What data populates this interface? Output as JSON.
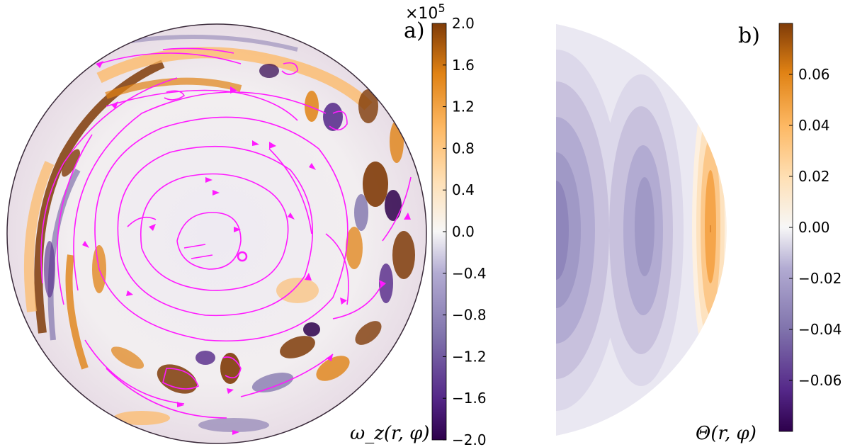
{
  "chart_data": [
    {
      "panel": "a)",
      "type": "heatmap",
      "title": "",
      "colorbar": {
        "quantity_label": "ω_z(r, φ)",
        "exponent_label": "×10",
        "exponent_power": "5",
        "ticks": [
          2.0,
          1.6,
          1.2,
          0.8,
          0.4,
          0.0,
          -0.4,
          -0.8,
          -1.2,
          -1.6,
          -2.0
        ],
        "tick_labels": [
          "2.0",
          "1.6",
          "1.2",
          "0.8",
          "0.4",
          "0.0",
          "−0.4",
          "−0.8",
          "−1.2",
          "−1.6",
          "−2.0"
        ],
        "range": [
          -2.0,
          2.0
        ],
        "colormap": "PuOr_r"
      },
      "domain": "full disk (equatorial plane), streamlines overlaid"
    },
    {
      "panel": "b)",
      "type": "heatmap",
      "title": "",
      "colorbar": {
        "quantity_label": "Θ(r, φ)",
        "ticks": [
          0.06,
          0.04,
          0.02,
          0.0,
          -0.02,
          -0.04,
          -0.06
        ],
        "tick_labels": [
          "0.06",
          "0.04",
          "0.02",
          "0.00",
          "−0.02",
          "−0.04",
          "−0.06"
        ],
        "range": [
          -0.08,
          0.08
        ],
        "colormap": "PuOr_r"
      },
      "domain": "meridional half-disk, filled contours"
    }
  ],
  "colors": {
    "streamline": "#ff1aff",
    "orange_dark": "#7f3b08",
    "orange_mid": "#e08214",
    "orange_light": "#fdb863",
    "neutral": "#f7f7f7",
    "purple_light": "#b2abd2",
    "purple_mid": "#8073ac",
    "purple_dark": "#2d004b"
  }
}
